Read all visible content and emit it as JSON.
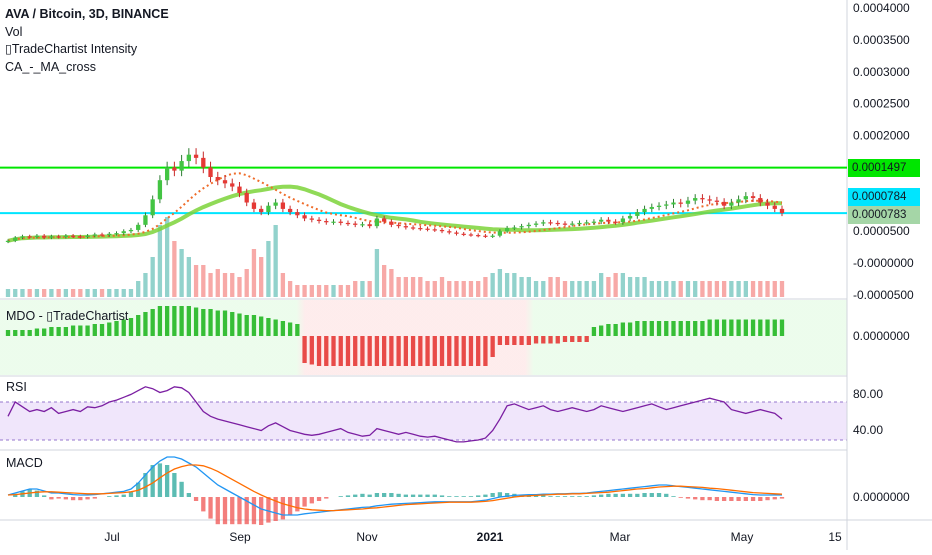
{
  "legend": {
    "title": "AVA / Bitcoin, 3D, BINANCE",
    "vol": "Vol",
    "intensity": "▯TradeChartist Intensity",
    "ma_cross": "CA_-_MA_cross"
  },
  "panes": {
    "mdo_label": "MDO - ▯TradeChartist",
    "rsi_label": "RSI",
    "macd_label": "MACD"
  },
  "colors": {
    "up": "#26a69a",
    "down": "#ef5350",
    "green_line": "#00e600",
    "cyan_line": "#00e5ff",
    "rsi_line": "#7b1fa2",
    "macd_line": "#2196f3",
    "signal_line": "#ff6d00"
  },
  "price_tags": {
    "green_level": "0.0001497",
    "current_price": "0.0000784",
    "cyan_level": "0.0000783"
  },
  "chart_data": [
    {
      "type": "candlestick",
      "title": "AVA / Bitcoin, 3D, BINANCE",
      "y_ticks": [
        "0.0004000",
        "0.0003500",
        "0.0003000",
        "0.0002500",
        "0.0002000",
        "0.0001500",
        "0.0001000",
        "0.0000500",
        "-0.0000000",
        "-0.0000500"
      ],
      "x_ticks": [
        "Jul",
        "Sep",
        "Nov",
        "2021",
        "Mar",
        "May",
        "15"
      ],
      "horizontal_levels": [
        0.0001497,
        7.83e-05
      ],
      "current_price": 7.84e-05,
      "closes": [
        3.5e-05,
        4e-05,
        4.2e-05,
        4.1e-05,
        4.3e-05,
        4e-05,
        4.2e-05,
        4.1e-05,
        4.3e-05,
        4.2e-05,
        4.1e-05,
        4.3e-05,
        4.5e-05,
        4.4e-05,
        4.6e-05,
        4.7e-05,
        5e-05,
        5.2e-05,
        6e-05,
        7.5e-05,
        0.0001,
        0.00013,
        0.00015,
        0.000145,
        0.00016,
        0.00017,
        0.000165,
        0.00015,
        0.000135,
        0.00013,
        0.000125,
        0.00012,
        0.00011,
        9.5e-05,
        8.5e-05,
        8e-05,
        9e-05,
        9.5e-05,
        8.5e-05,
        8e-05,
        7.5e-05,
        7e-05,
        6.8e-05,
        6.6e-05,
        6.4e-05,
        6.5e-05,
        6.3e-05,
        6.2e-05,
        6e-05,
        6.1e-05,
        5.8e-05,
        7e-05,
        6.5e-05,
        6e-05,
        5.8e-05,
        5.6e-05,
        5.5e-05,
        5.4e-05,
        5.3e-05,
        5.2e-05,
        5e-05,
        4.8e-05,
        4.6e-05,
        4.5e-05,
        4.4e-05,
        4.3e-05,
        4.2e-05,
        4.3e-05,
        5e-05,
        5.5e-05,
        5.6e-05,
        5.8e-05,
        6e-05,
        6.2e-05,
        6.4e-05,
        6.3e-05,
        6.2e-05,
        6.1e-05,
        6.2e-05,
        6.3e-05,
        6.4e-05,
        6.5e-05,
        6.8e-05,
        6.5e-05,
        6.4e-05,
        7e-05,
        7.4e-05,
        8e-05,
        8.5e-05,
        8.8e-05,
        9e-05,
        9.2e-05,
        9.5e-05,
        9.3e-05,
        9.8e-05,
        0.000102,
        0.0001,
        9.8e-05,
        9.6e-05,
        9e-05,
        9.5e-05,
        0.0001,
        0.000105,
        0.000102,
        9.5e-05,
        9e-05,
        8.5e-05,
        7.84e-05
      ],
      "volume_relative": [
        0.1,
        0.1,
        0.1,
        0.1,
        0.1,
        0.1,
        0.1,
        0.1,
        0.1,
        0.1,
        0.1,
        0.1,
        0.1,
        0.1,
        0.1,
        0.1,
        0.1,
        0.1,
        0.2,
        0.3,
        0.5,
        0.9,
        1.0,
        0.7,
        0.6,
        0.5,
        0.4,
        0.4,
        0.3,
        0.35,
        0.3,
        0.3,
        0.25,
        0.35,
        0.6,
        0.5,
        0.7,
        0.9,
        0.3,
        0.2,
        0.15,
        0.15,
        0.15,
        0.15,
        0.15,
        0.15,
        0.15,
        0.15,
        0.2,
        0.2,
        0.2,
        0.6,
        0.4,
        0.35,
        0.25,
        0.25,
        0.25,
        0.25,
        0.2,
        0.2,
        0.25,
        0.2,
        0.2,
        0.2,
        0.2,
        0.2,
        0.25,
        0.3,
        0.35,
        0.3,
        0.3,
        0.25,
        0.25,
        0.2,
        0.2,
        0.25,
        0.25,
        0.2,
        0.2,
        0.2,
        0.2,
        0.2,
        0.3,
        0.25,
        0.3,
        0.3,
        0.25,
        0.25,
        0.25,
        0.2,
        0.2,
        0.2,
        0.2,
        0.2,
        0.2,
        0.2,
        0.2,
        0.2,
        0.2,
        0.2,
        0.2,
        0.2,
        0.2,
        0.2,
        0.2,
        0.2,
        0.2,
        0.2
      ]
    },
    {
      "type": "histogram",
      "title": "MDO - ▯TradeChartist",
      "y_ticks": [
        "0.0000000"
      ],
      "values": [
        0.2,
        0.2,
        0.2,
        0.2,
        0.25,
        0.25,
        0.3,
        0.3,
        0.3,
        0.35,
        0.35,
        0.35,
        0.4,
        0.4,
        0.45,
        0.5,
        0.55,
        0.6,
        0.7,
        0.8,
        0.9,
        1.0,
        1.0,
        1.0,
        1.0,
        1.0,
        0.95,
        0.9,
        0.9,
        0.85,
        0.85,
        0.8,
        0.75,
        0.7,
        0.7,
        0.65,
        0.6,
        0.55,
        0.5,
        0.45,
        0.4,
        -0.9,
        -0.95,
        -1.0,
        -1.0,
        -1.0,
        -1.0,
        -1.0,
        -1.0,
        -1.0,
        -1.0,
        -1.0,
        -1.0,
        -1.0,
        -1.0,
        -1.0,
        -1.0,
        -1.0,
        -1.0,
        -1.0,
        -1.0,
        -1.0,
        -1.0,
        -1.0,
        -1.0,
        -1.0,
        -1.0,
        -0.7,
        -0.3,
        -0.3,
        -0.3,
        -0.3,
        -0.3,
        -0.25,
        -0.25,
        -0.25,
        -0.25,
        -0.2,
        -0.2,
        -0.2,
        -0.2,
        0.3,
        0.35,
        0.4,
        0.4,
        0.45,
        0.45,
        0.5,
        0.5,
        0.5,
        0.5,
        0.5,
        0.5,
        0.5,
        0.5,
        0.5,
        0.5,
        0.55,
        0.55,
        0.55,
        0.55,
        0.55,
        0.55,
        0.55,
        0.55,
        0.55,
        0.55,
        0.55
      ]
    },
    {
      "type": "line",
      "title": "RSI",
      "y_ticks": [
        "80.00",
        "40.00"
      ],
      "band": [
        30,
        70
      ],
      "values": [
        55,
        70,
        65,
        60,
        62,
        60,
        64,
        58,
        60,
        62,
        60,
        65,
        64,
        66,
        70,
        72,
        75,
        78,
        82,
        86,
        84,
        80,
        82,
        86,
        85,
        80,
        70,
        60,
        55,
        52,
        50,
        48,
        46,
        44,
        42,
        40,
        45,
        48,
        44,
        40,
        38,
        36,
        35,
        36,
        38,
        40,
        42,
        38,
        36,
        34,
        35,
        42,
        40,
        38,
        36,
        38,
        36,
        34,
        33,
        34,
        32,
        30,
        28,
        28,
        29,
        30,
        32,
        40,
        52,
        66,
        68,
        65,
        62,
        64,
        66,
        62,
        60,
        62,
        64,
        62,
        60,
        62,
        66,
        64,
        62,
        60,
        62,
        64,
        66,
        68,
        65,
        62,
        64,
        66,
        68,
        70,
        72,
        74,
        72,
        70,
        62,
        60,
        58,
        60,
        62,
        60,
        58,
        52
      ]
    },
    {
      "type": "macd",
      "title": "MACD",
      "y_ticks": [
        "0.0000000"
      ],
      "macd": [
        0.05,
        0.1,
        0.15,
        0.2,
        0.2,
        0.15,
        0.1,
        0.1,
        0.08,
        0.06,
        0.05,
        0.05,
        0.06,
        0.08,
        0.1,
        0.12,
        0.14,
        0.2,
        0.35,
        0.55,
        0.75,
        0.9,
        1.0,
        1.0,
        0.95,
        0.85,
        0.75,
        0.6,
        0.45,
        0.3,
        0.2,
        0.1,
        0.0,
        -0.1,
        -0.2,
        -0.3,
        -0.35,
        -0.4,
        -0.45,
        -0.45,
        -0.45,
        -0.42,
        -0.4,
        -0.38,
        -0.36,
        -0.34,
        -0.32,
        -0.3,
        -0.28,
        -0.26,
        -0.25,
        -0.22,
        -0.2,
        -0.18,
        -0.17,
        -0.16,
        -0.15,
        -0.14,
        -0.13,
        -0.12,
        -0.12,
        -0.12,
        -0.12,
        -0.12,
        -0.12,
        -0.1,
        -0.08,
        -0.04,
        0.0,
        0.02,
        0.04,
        0.05,
        0.06,
        0.06,
        0.07,
        0.07,
        0.08,
        0.08,
        0.09,
        0.09,
        0.1,
        0.12,
        0.14,
        0.16,
        0.18,
        0.2,
        0.22,
        0.24,
        0.26,
        0.28,
        0.3,
        0.3,
        0.28,
        0.26,
        0.24,
        0.22,
        0.2,
        0.18,
        0.16,
        0.14,
        0.12,
        0.1,
        0.08,
        0.06,
        0.05,
        0.05,
        0.05,
        0.05
      ],
      "signal": [
        0.05,
        0.06,
        0.08,
        0.1,
        0.12,
        0.13,
        0.13,
        0.12,
        0.11,
        0.1,
        0.09,
        0.08,
        0.08,
        0.08,
        0.09,
        0.1,
        0.11,
        0.13,
        0.17,
        0.25,
        0.35,
        0.48,
        0.6,
        0.7,
        0.76,
        0.8,
        0.8,
        0.78,
        0.72,
        0.64,
        0.54,
        0.44,
        0.34,
        0.24,
        0.14,
        0.05,
        -0.03,
        -0.1,
        -0.17,
        -0.22,
        -0.27,
        -0.3,
        -0.32,
        -0.33,
        -0.34,
        -0.34,
        -0.33,
        -0.32,
        -0.31,
        -0.3,
        -0.28,
        -0.27,
        -0.25,
        -0.23,
        -0.21,
        -0.19,
        -0.18,
        -0.17,
        -0.16,
        -0.15,
        -0.14,
        -0.13,
        -0.13,
        -0.13,
        -0.13,
        -0.12,
        -0.11,
        -0.09,
        -0.06,
        -0.03,
        0.0,
        0.02,
        0.03,
        0.04,
        0.05,
        0.06,
        0.07,
        0.07,
        0.08,
        0.08,
        0.09,
        0.1,
        0.11,
        0.12,
        0.14,
        0.16,
        0.18,
        0.2,
        0.21,
        0.23,
        0.25,
        0.26,
        0.27,
        0.27,
        0.26,
        0.25,
        0.24,
        0.22,
        0.21,
        0.19,
        0.17,
        0.15,
        0.13,
        0.11,
        0.1,
        0.09,
        0.08,
        0.07
      ]
    }
  ]
}
